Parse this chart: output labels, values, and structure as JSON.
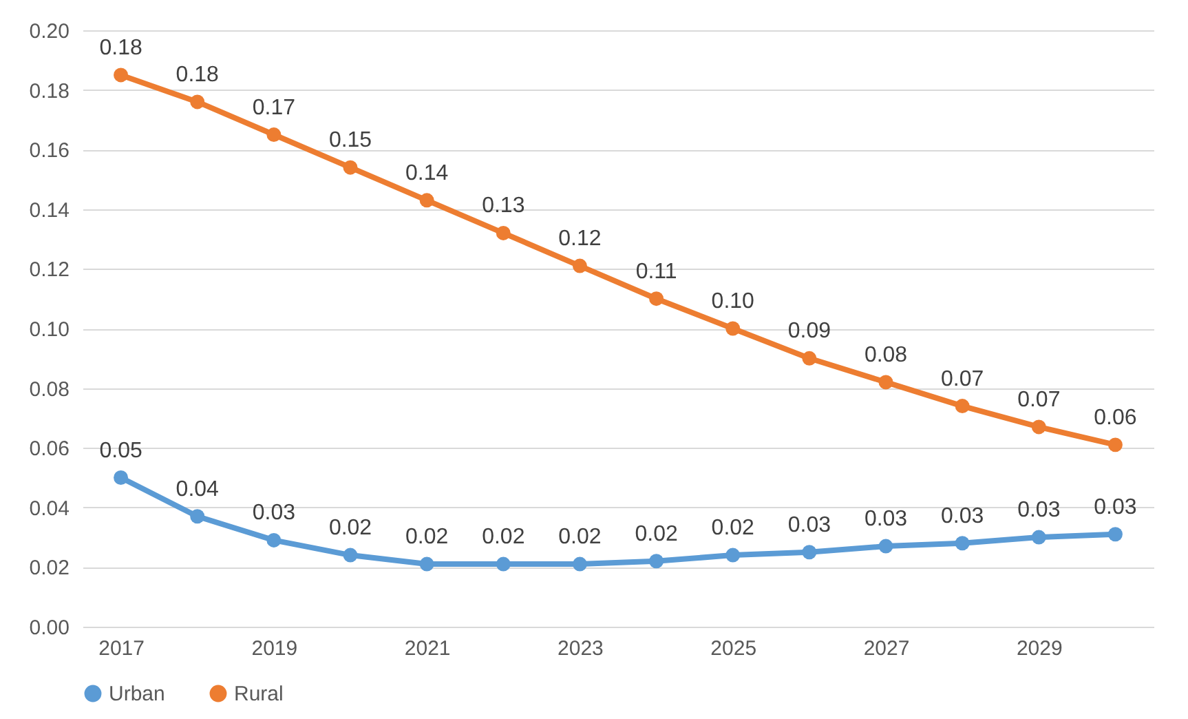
{
  "chart_data": {
    "type": "line",
    "x": [
      2017,
      2018,
      2019,
      2020,
      2021,
      2022,
      2023,
      2024,
      2025,
      2026,
      2027,
      2028,
      2029,
      2030
    ],
    "xlim": [
      2016.5,
      2030.5
    ],
    "xticks": [
      2017,
      2019,
      2021,
      2023,
      2025,
      2027,
      2029
    ],
    "ylim": [
      0,
      0.2
    ],
    "yticks": [
      {
        "value": 0,
        "label": "0.00"
      },
      {
        "value": 0.02,
        "label": "0.02"
      },
      {
        "value": 0.04,
        "label": "0.04"
      },
      {
        "value": 0.06,
        "label": "0.06"
      },
      {
        "value": 0.08,
        "label": "0.08"
      },
      {
        "value": 0.1,
        "label": "0.10"
      },
      {
        "value": 0.12,
        "label": "0.12"
      },
      {
        "value": 0.14,
        "label": "0.14"
      },
      {
        "value": 0.16,
        "label": "0.16"
      },
      {
        "value": 0.18,
        "label": "0.18"
      },
      {
        "value": 0.2,
        "label": "0.20"
      }
    ],
    "series": [
      {
        "name": "Urban",
        "color": "#5b9bd5",
        "values": [
          0.05,
          0.037,
          0.029,
          0.024,
          0.021,
          0.021,
          0.021,
          0.022,
          0.024,
          0.025,
          0.027,
          0.028,
          0.03,
          0.031
        ],
        "value_labels": [
          "0.05",
          "0.04",
          "0.03",
          "0.02",
          "0.02",
          "0.02",
          "0.02",
          "0.02",
          "0.02",
          "0.03",
          "0.03",
          "0.03",
          "0.03",
          "0.03"
        ]
      },
      {
        "name": "Rural",
        "color": "#ed7d31",
        "values": [
          0.185,
          0.176,
          0.165,
          0.154,
          0.143,
          0.132,
          0.121,
          0.11,
          0.1,
          0.09,
          0.082,
          0.074,
          0.067,
          0.061
        ],
        "value_labels": [
          "0.18",
          "0.18",
          "0.17",
          "0.15",
          "0.14",
          "0.13",
          "0.12",
          "0.11",
          "0.10",
          "0.09",
          "0.08",
          "0.07",
          "0.07",
          "0.06"
        ]
      }
    ],
    "grid": "y",
    "legend": "bottom",
    "marker": "circle",
    "line_style": "solid"
  }
}
